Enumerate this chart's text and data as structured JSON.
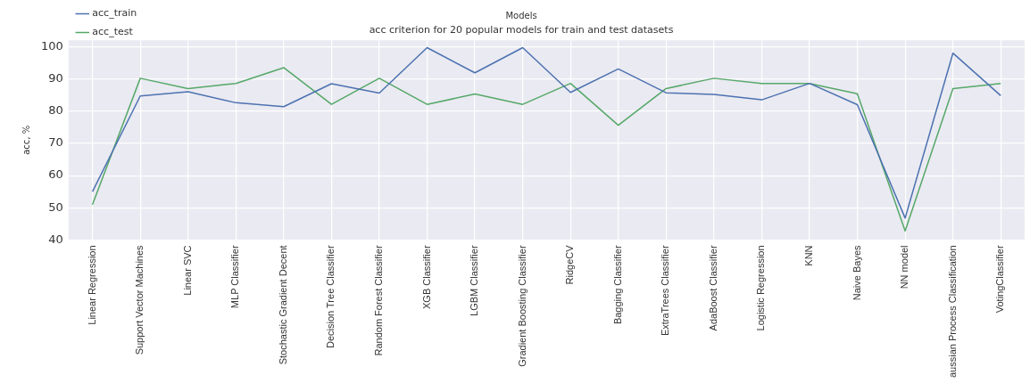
{
  "chart_data": {
    "type": "line",
    "title": "acc criterion for 20 popular models for train and test datasets",
    "xlabel": "Models",
    "ylabel": "acc, %",
    "categories": [
      "Linear Regression",
      "Support Vector Machines",
      "Linear SVC",
      "MLP Classifier",
      "Stochastic Gradient Decent",
      "Decision Tree Classifier",
      "Random Forest Classifier",
      "XGB Classifier",
      "LGBM Classifier",
      "Gradient Boosting Classifier",
      "RidgeCV",
      "Bagging Classifier",
      "ExtraTrees Classifier",
      "AdaBoost Classifier",
      "Logistic Regression",
      "KNN",
      "Naive Bayes",
      "NN model",
      "aussian Process Classification",
      "VotingClassifier"
    ],
    "series": [
      {
        "name": "acc_train",
        "color": "#4c72b0",
        "values": [
          55,
          84.7,
          86,
          82.6,
          81.4,
          88.5,
          85.6,
          99.7,
          91.9,
          99.7,
          85.8,
          93.1,
          85.7,
          85.2,
          83.5,
          88.6,
          82,
          46.8,
          98,
          84.8
        ]
      },
      {
        "name": "acc_test",
        "color": "#55a868",
        "values": [
          51,
          90.2,
          87,
          88.6,
          93.5,
          82.1,
          90.2,
          82.1,
          85.3,
          82.1,
          88.6,
          75.6,
          87,
          90.2,
          88.6,
          88.6,
          85.4,
          42.8,
          87,
          88.6
        ]
      }
    ],
    "ylim": [
      40,
      102
    ],
    "yticks": [
      40,
      50,
      60,
      70,
      80,
      90,
      100
    ],
    "grid": true,
    "legend": "top left",
    "marker": "none",
    "line_style": "solid"
  }
}
